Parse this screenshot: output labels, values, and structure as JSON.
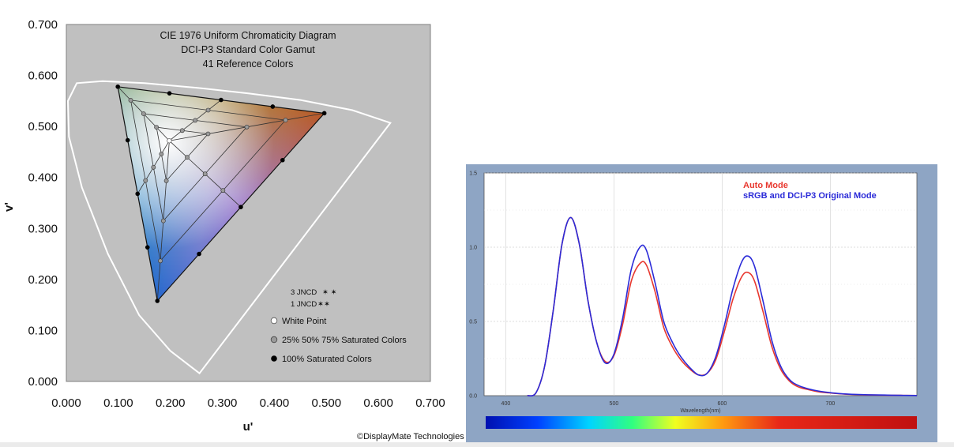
{
  "colors": {
    "plot_bg": "#c0c0c0",
    "locus": "#ffffff",
    "auto_mode": "#e8382f",
    "original_mode": "#2b2bd8",
    "spectrum_frame": "#8ea5c4"
  },
  "credit": "©DisplayMate Technologies",
  "chart_data": [
    {
      "type": "scatter",
      "title_lines": [
        "CIE 1976 Uniform Chromaticity Diagram",
        "DCI-P3 Standard Color Gamut",
        "41 Reference Colors"
      ],
      "xlabel": "u'",
      "ylabel": "v'",
      "xlim": [
        0,
        0.7
      ],
      "ylim": [
        0,
        0.7
      ],
      "x_ticks": [
        "0.000",
        "0.100",
        "0.200",
        "0.300",
        "0.400",
        "0.500",
        "0.600",
        "0.700"
      ],
      "y_ticks": [
        "0.000",
        "0.100",
        "0.200",
        "0.300",
        "0.400",
        "0.500",
        "0.600",
        "0.700"
      ],
      "grid": false,
      "primaries": {
        "red": [
          0.496,
          0.526
        ],
        "green": [
          0.099,
          0.578
        ],
        "blue": [
          0.175,
          0.158
        ]
      },
      "white_point": [
        0.198,
        0.472
      ],
      "spectral_locus": [
        [
          0.256,
          0.016
        ],
        [
          0.2,
          0.06
        ],
        [
          0.14,
          0.13
        ],
        [
          0.08,
          0.25
        ],
        [
          0.03,
          0.38
        ],
        [
          0.005,
          0.48
        ],
        [
          0.003,
          0.55
        ],
        [
          0.02,
          0.585
        ],
        [
          0.07,
          0.589
        ],
        [
          0.15,
          0.585
        ],
        [
          0.25,
          0.576
        ],
        [
          0.35,
          0.565
        ],
        [
          0.45,
          0.552
        ],
        [
          0.55,
          0.532
        ],
        [
          0.623,
          0.507
        ]
      ],
      "legend": [
        {
          "symbol": "cross",
          "label": "3 JNCD"
        },
        {
          "symbol": "cross",
          "label": "1 JNCD"
        },
        {
          "symbol": "white-dot",
          "label": "White Point"
        },
        {
          "symbol": "gray-dot",
          "label": "25% 50% 75% Saturated Colors"
        },
        {
          "symbol": "black-dot",
          "label": "100% Saturated Colors"
        }
      ],
      "legend_placement": "lower-right"
    },
    {
      "type": "line",
      "xlabel": "Wavelength(nm)",
      "xlim": [
        380,
        780
      ],
      "ylim": [
        0,
        1.5
      ],
      "x_ticks": [
        "400",
        "500",
        "600",
        "700"
      ],
      "y_ticks": [
        "0.0",
        "0.5",
        "1.0",
        "1.5"
      ],
      "grid": true,
      "legend_placement": "top-right",
      "series": [
        {
          "name": "Auto Mode",
          "color": "#e8382f",
          "x": [
            420,
            428,
            436,
            444,
            452,
            460,
            468,
            476,
            484,
            492,
            500,
            508,
            516,
            524,
            530,
            538,
            546,
            554,
            562,
            570,
            578,
            586,
            594,
            602,
            610,
            618,
            624,
            630,
            638,
            646,
            654,
            662,
            670,
            680,
            690,
            700,
            710,
            720,
            735,
            750,
            765,
            780
          ],
          "y": [
            0,
            0.02,
            0.2,
            0.58,
            1.02,
            1.2,
            1.02,
            0.64,
            0.36,
            0.23,
            0.27,
            0.48,
            0.77,
            0.89,
            0.88,
            0.7,
            0.46,
            0.33,
            0.24,
            0.18,
            0.14,
            0.15,
            0.24,
            0.43,
            0.65,
            0.8,
            0.83,
            0.77,
            0.56,
            0.33,
            0.18,
            0.1,
            0.06,
            0.04,
            0.025,
            0.018,
            0.012,
            0.008,
            0.005,
            0.003,
            0.002,
            0.001
          ]
        },
        {
          "name": "sRGB and DCI-P3 Original Mode",
          "color": "#2b2bd8",
          "x": [
            420,
            428,
            436,
            444,
            452,
            460,
            468,
            476,
            484,
            492,
            500,
            508,
            516,
            524,
            530,
            538,
            546,
            554,
            562,
            570,
            578,
            586,
            594,
            602,
            610,
            618,
            624,
            630,
            638,
            646,
            654,
            662,
            670,
            680,
            690,
            700,
            710,
            720,
            735,
            750,
            765,
            780
          ],
          "y": [
            0,
            0.02,
            0.2,
            0.58,
            1.02,
            1.2,
            1.02,
            0.64,
            0.36,
            0.22,
            0.28,
            0.52,
            0.85,
            1.0,
            0.98,
            0.76,
            0.5,
            0.36,
            0.26,
            0.19,
            0.14,
            0.15,
            0.26,
            0.47,
            0.72,
            0.9,
            0.94,
            0.87,
            0.63,
            0.37,
            0.2,
            0.11,
            0.07,
            0.045,
            0.03,
            0.02,
            0.013,
            0.009,
            0.006,
            0.004,
            0.002,
            0.001
          ]
        }
      ]
    }
  ]
}
